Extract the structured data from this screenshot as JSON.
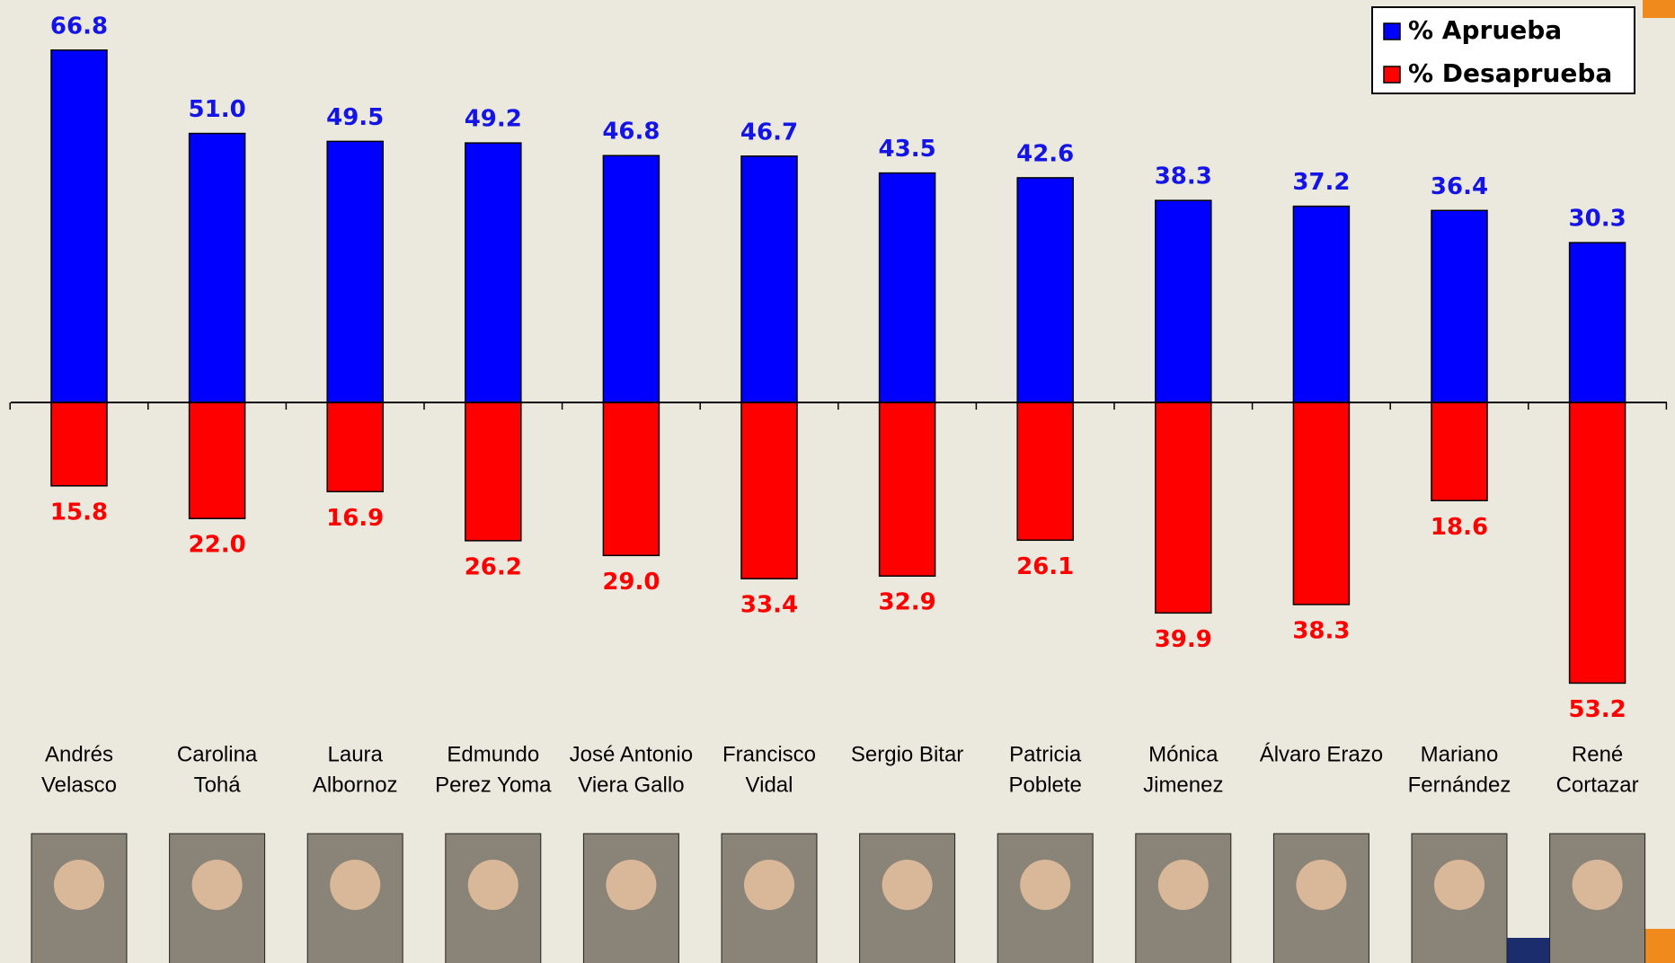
{
  "chart_data": {
    "type": "bar",
    "categories": [
      [
        "Andrés",
        "Velasco"
      ],
      [
        "Carolina",
        "Tohá"
      ],
      [
        "Laura",
        "Albornoz"
      ],
      [
        "Edmundo",
        "Perez Yoma"
      ],
      [
        "José Antonio",
        "Viera Gallo"
      ],
      [
        "Francisco",
        "Vidal"
      ],
      [
        "Sergio Bitar"
      ],
      [
        "Patricia",
        "Poblete"
      ],
      [
        "Mónica",
        "Jimenez"
      ],
      [
        "Álvaro Erazo"
      ],
      [
        "Mariano",
        "Fernández"
      ],
      [
        "René",
        "Cortazar"
      ]
    ],
    "series": [
      {
        "name": "% Aprueba",
        "color": "#0000ff",
        "label_color": "#1414e6",
        "direction": "up",
        "values": [
          66.8,
          51.0,
          49.5,
          49.2,
          46.8,
          46.7,
          43.5,
          42.6,
          38.3,
          37.2,
          36.4,
          30.3
        ],
        "value_labels": [
          "66.8",
          "51.0",
          "49.5",
          "49.2",
          "46.8",
          "46.7",
          "43.5",
          "42.6",
          "38.3",
          "37.2",
          "36.4",
          "30.3"
        ]
      },
      {
        "name": "% Desaprueba",
        "color": "#ff0000",
        "label_color": "#ff0000",
        "direction": "down",
        "values": [
          15.8,
          22.0,
          16.9,
          26.2,
          29.0,
          33.4,
          32.9,
          26.1,
          39.9,
          38.3,
          18.6,
          53.2
        ],
        "value_labels": [
          "15.8",
          "22.0",
          "16.9",
          "26.2",
          "29.0",
          "33.4",
          "32.9",
          "26.1",
          "39.9",
          "38.3",
          "18.6",
          "53.2"
        ]
      }
    ],
    "ylim": [
      -55,
      70
    ],
    "legend": "top-right"
  }
}
